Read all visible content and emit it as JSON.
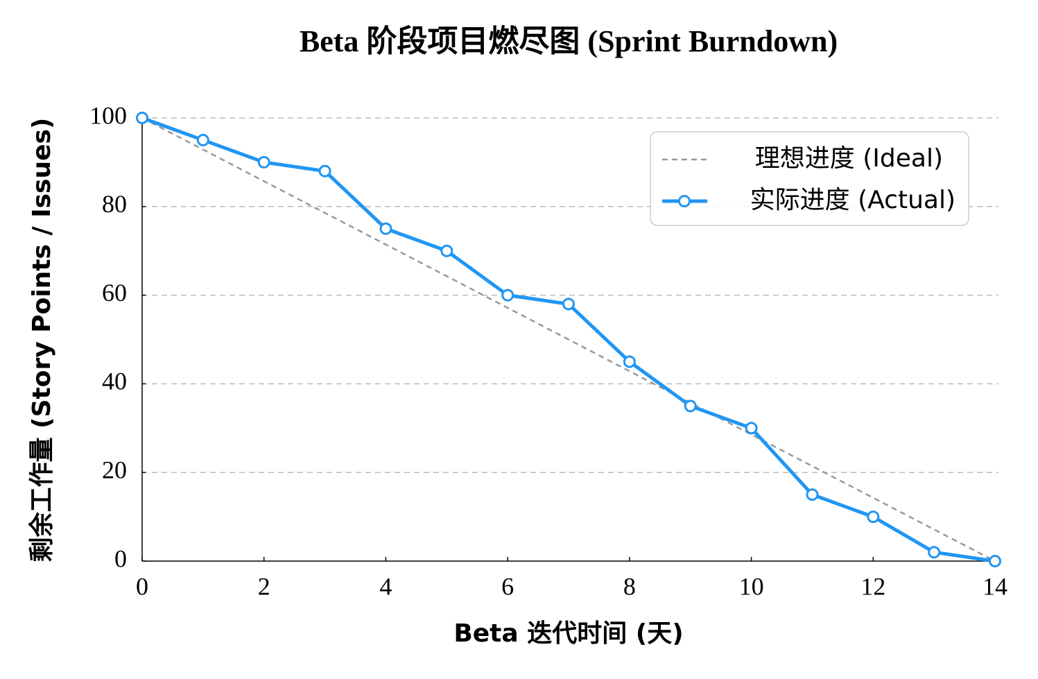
{
  "chart_data": {
    "type": "line",
    "title": "Beta 阶段项目燃尽图 (Sprint Burndown)",
    "x_label": "Beta 迭代时间 (天)",
    "y_label": "剩余工作量 (Story Points / Issues)",
    "series": [
      {
        "name": "理想进度 (Ideal)",
        "color": "#999999",
        "style": "dashed",
        "x": [
          0,
          14
        ],
        "values": [
          100,
          0
        ]
      },
      {
        "name": "实际进度 (Actual)",
        "color": "#2196f3",
        "style": "solid",
        "marker": "circle",
        "x": [
          0,
          1,
          2,
          3,
          4,
          5,
          6,
          7,
          8,
          9,
          10,
          11,
          12,
          13,
          14
        ],
        "values": [
          100,
          95,
          90,
          88,
          75,
          70,
          60,
          58,
          45,
          35,
          30,
          15,
          10,
          2,
          0
        ]
      }
    ],
    "xlim": [
      0,
      14
    ],
    "xticks": [
      0,
      2,
      4,
      6,
      8,
      10,
      12,
      14
    ],
    "ylim": [
      0,
      100
    ],
    "yticks": [
      0,
      20,
      40,
      60,
      80,
      100
    ],
    "grid": true,
    "legend": "upper right"
  }
}
